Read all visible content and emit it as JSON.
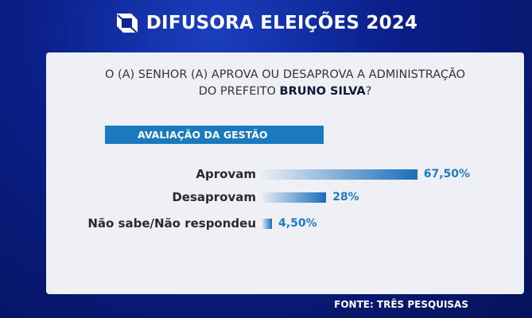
{
  "header": {
    "title": "DIFUSORA ELEIÇÕES 2024",
    "logo": "difusora-logo"
  },
  "question": {
    "line1": "O (A) SENHOR (A) APROVA OU DESAPROVA A ADMINISTRAÇÃO",
    "line2_prefix": "DO PREFEITO ",
    "name": "BRUNO SILVA",
    "line2_suffix": "?"
  },
  "chart_data": {
    "type": "bar",
    "orientation": "horizontal",
    "title": "AVALIAÇÃO DA GESTÃO",
    "categories": [
      "Aprovam",
      "Desaprovam",
      "Não sabe/Não respondeu"
    ],
    "values": [
      67.5,
      28,
      4.5
    ],
    "value_labels": [
      "67,50%",
      "28%",
      "4,50%"
    ],
    "bar_color": "#1a6eb9",
    "label_color": "#1f7cc0"
  },
  "footer": {
    "source": "FONTE: TRÊS PESQUISAS"
  }
}
